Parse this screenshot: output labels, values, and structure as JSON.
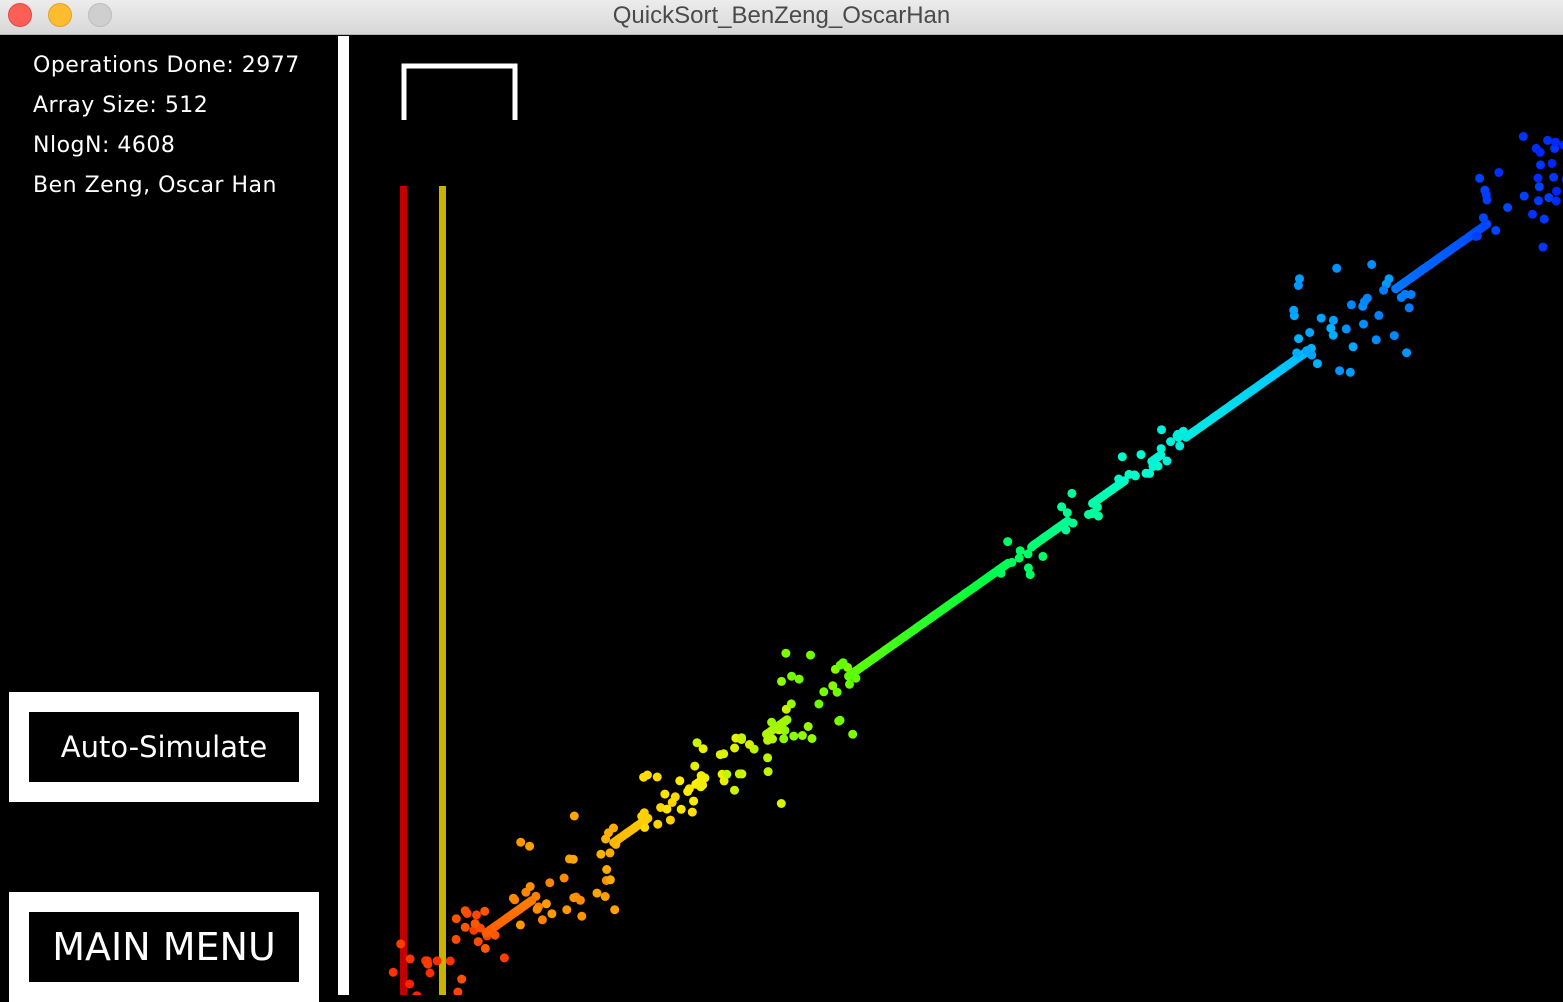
{
  "window": {
    "title": "QuickSort_BenZeng_OscarHan"
  },
  "sidebar": {
    "operations": "Operations Done: 2977",
    "array_size": "Array Size: 512",
    "nlogn": "NlogN: 4608",
    "authors": "Ben Zeng, Oscar Han",
    "auto_simulate_label": "Auto-Simulate",
    "main_menu_label": "MAIN MENU"
  },
  "visualization": {
    "type": "scatter",
    "background": "#000000",
    "pointer_colors": {
      "pivot_left": "#c00000",
      "pivot_right": "#c8b400"
    },
    "gradient": [
      "#ff2200",
      "#ff8800",
      "#ffee00",
      "#66ff00",
      "#00ff44",
      "#00ffcc",
      "#00ccff",
      "#0066ff",
      "#0022ff"
    ]
  },
  "chart_data": {
    "type": "scatter",
    "title": "",
    "xlabel": "",
    "ylabel": "",
    "xlim": [
      0,
      512
    ],
    "ylim": [
      0,
      512
    ],
    "points_count": 512,
    "description_values": {
      "array_size": 512,
      "operations_done": 2977,
      "nlogn": 4608
    }
  }
}
